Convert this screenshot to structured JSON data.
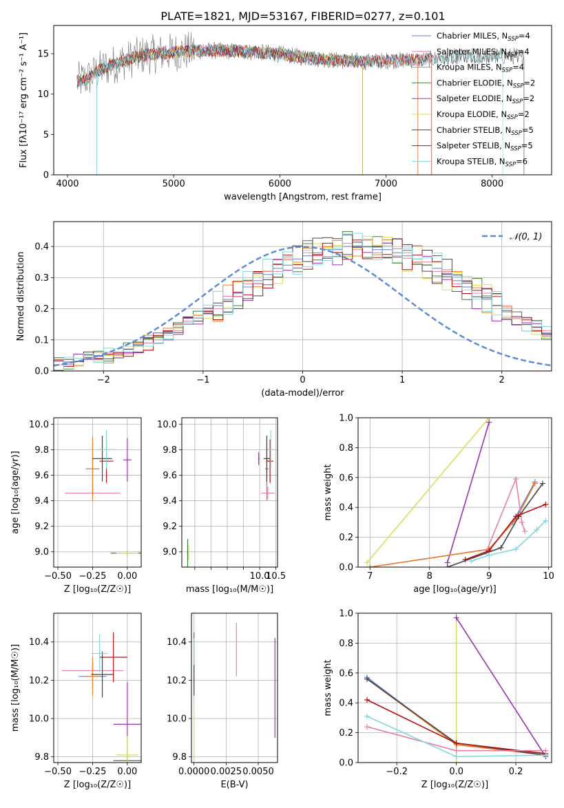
{
  "title": "PLATE=1821, MJD=53167, FIBERID=0277, z=0.101",
  "colors": {
    "chabrier_miles": "#5b7fd6",
    "salpeter_miles": "#e67fa8",
    "kroupa_miles": "#f07f28",
    "chabrier_elodie": "#3c7a3c",
    "salpeter_elodie": "#9b30b0",
    "kroupa_elodie": "#d4e05a",
    "chabrier_stelib": "#444444",
    "salpeter_stelib": "#b01010",
    "kroupa_stelib": "#7fd8e0",
    "normal_curve": "#5b8bd6"
  },
  "chart_data": [
    {
      "id": "spectrum",
      "type": "line",
      "xlabel": "wavelength [Angstrom, rest frame]",
      "ylabel": "Flux [fλ10⁻¹⁷ erg cm⁻² s⁻¹ A⁻¹]",
      "xlim": [
        3870,
        8560
      ],
      "ylim": [
        0,
        18.5
      ],
      "xticks": [
        4000,
        5000,
        6000,
        7000,
        8000
      ],
      "yticks": [
        0,
        5,
        10,
        15
      ],
      "grid": false,
      "legend_position": "right",
      "continuum": {
        "x": [
          4090,
          4200,
          4300,
          4500,
          4700,
          5000,
          5300,
          5600,
          5900,
          6200,
          6500,
          6800,
          7100,
          7400,
          7700,
          8000,
          8300
        ],
        "y": [
          11.5,
          12.0,
          13.0,
          14.0,
          14.8,
          15.2,
          15.4,
          15.3,
          15.1,
          14.6,
          14.2,
          14.0,
          14.2,
          14.3,
          14.6,
          14.7,
          14.7
        ]
      },
      "series": [
        {
          "name": "Chabrier MILES, N_SSP=4",
          "name_main": "Chabrier MILES, N",
          "name_sub": "SSP",
          "name_tail": "=4",
          "x_end": 7300,
          "color_key": "chabrier_miles"
        },
        {
          "name": "Salpeter MILES, N_SSP=4",
          "name_main": "Salpeter MILES, N",
          "name_sub": "SSP",
          "name_tail": "=4",
          "x_end": 7300,
          "color_key": "salpeter_miles"
        },
        {
          "name": "Kroupa MILES, N_SSP=4",
          "name_main": "Kroupa MILES, N",
          "name_sub": "SSP",
          "name_tail": "=4",
          "x_end": 7300,
          "color_key": "kroupa_miles"
        },
        {
          "name": "Chabrier ELODIE, N_SSP=2",
          "name_main": "Chabrier ELODIE, N",
          "name_sub": "SSP",
          "name_tail": "=2",
          "x_end": 6780,
          "color_key": "chabrier_elodie"
        },
        {
          "name": "Salpeter ELODIE, N_SSP=2",
          "name_main": "Salpeter ELODIE, N",
          "name_sub": "SSP",
          "name_tail": "=2",
          "x_end": 6780,
          "color_key": "salpeter_elodie"
        },
        {
          "name": "Kroupa ELODIE, N_SSP=2",
          "name_main": "Kroupa ELODIE, N",
          "name_sub": "SSP",
          "name_tail": "=2",
          "x_end": 6780,
          "color_key": "kroupa_elodie"
        },
        {
          "name": "Chabrier STELIB, N_SSP=5",
          "name_main": "Chabrier STELIB, N",
          "name_sub": "SSP",
          "name_tail": "=5",
          "x_end": 8300,
          "color_key": "chabrier_stelib"
        },
        {
          "name": "Salpeter STELIB, N_SSP=5",
          "name_main": "Salpeter STELIB, N",
          "name_sub": "SSP",
          "name_tail": "=5",
          "x_end": 7430,
          "color_key": "salpeter_stelib"
        },
        {
          "name": "Kroupa STELIB, N_SSP=6",
          "name_main": "Kroupa STELIB, N",
          "name_sub": "SSP",
          "name_tail": "=6",
          "x_end": 8100,
          "color_key": "kroupa_stelib"
        }
      ]
    },
    {
      "id": "residuals",
      "type": "histogram",
      "xlabel": "(data-model)/error",
      "ylabel": "Normed distribution",
      "xlim": [
        -2.5,
        2.5
      ],
      "ylim": [
        0,
        0.48
      ],
      "xticks": [
        -2,
        -1,
        0,
        1,
        2
      ],
      "yticks": [
        0.0,
        0.1,
        0.2,
        0.3,
        0.4
      ],
      "grid": true,
      "legend_position": "top-right",
      "legend": "𝒩(0, 1)",
      "bin_width": 0.1,
      "bins_start": -2.5,
      "series": [
        {
          "color_key": "chabrier_miles",
          "values": [
            0.02,
            0.02,
            0.03,
            0.04,
            0.05,
            0.05,
            0.06,
            0.07,
            0.08,
            0.09,
            0.11,
            0.12,
            0.14,
            0.15,
            0.17,
            0.19,
            0.21,
            0.23,
            0.25,
            0.27,
            0.29,
            0.31,
            0.33,
            0.34,
            0.36,
            0.37,
            0.38,
            0.39,
            0.39,
            0.4,
            0.4,
            0.4,
            0.39,
            0.39,
            0.38,
            0.37,
            0.36,
            0.34,
            0.33,
            0.31,
            0.29,
            0.27,
            0.25,
            0.23,
            0.21,
            0.19,
            0.17,
            0.15,
            0.14,
            0.12
          ]
        },
        {
          "color_key": "salpeter_miles",
          "values": [
            0.02,
            0.03,
            0.03,
            0.04,
            0.04,
            0.06,
            0.06,
            0.07,
            0.09,
            0.09,
            0.1,
            0.13,
            0.13,
            0.16,
            0.16,
            0.2,
            0.2,
            0.24,
            0.24,
            0.28,
            0.28,
            0.32,
            0.32,
            0.36,
            0.35,
            0.38,
            0.37,
            0.4,
            0.38,
            0.41,
            0.39,
            0.42,
            0.38,
            0.41,
            0.37,
            0.38,
            0.35,
            0.35,
            0.32,
            0.32,
            0.28,
            0.29,
            0.25,
            0.25,
            0.21,
            0.21,
            0.17,
            0.17,
            0.14,
            0.13
          ]
        }
      ],
      "normal_curve": {
        "mean": 0,
        "sigma": 1
      }
    },
    {
      "id": "age_vs_Z",
      "type": "errorbar",
      "xlabel": "Z [log₁₀(Z/Z☉)]",
      "ylabel": "age [log₁₀(age/yr)]",
      "xlim": [
        -0.53,
        0.1
      ],
      "ylim": [
        8.88,
        10.05
      ],
      "xticks": [
        -0.5,
        -0.25,
        0.0
      ],
      "yticks": [
        9.0,
        9.2,
        9.4,
        9.6,
        9.8,
        10.0
      ],
      "grid": true,
      "points": [
        {
          "color_key": "chabrier_miles",
          "x": -0.25,
          "xerr": 0.05,
          "y": 9.65,
          "yerr": 0.2
        },
        {
          "color_key": "salpeter_miles",
          "x": -0.25,
          "xerr": 0.2,
          "y": 9.46,
          "yerr": 0.05
        },
        {
          "color_key": "kroupa_miles",
          "x": -0.25,
          "xerr": 0.05,
          "y": 9.65,
          "yerr": 0.25
        },
        {
          "color_key": "chabrier_elodie",
          "x": 0.0,
          "xerr": 0.12,
          "y": 8.99,
          "yerr": 0.02
        },
        {
          "color_key": "salpeter_elodie",
          "x": 0.0,
          "xerr": 0.03,
          "y": 9.72,
          "yerr": 0.17
        },
        {
          "color_key": "kroupa_elodie",
          "x": 0.0,
          "xerr": 0.08,
          "y": 8.99,
          "yerr": 0.02
        },
        {
          "color_key": "chabrier_stelib",
          "x": -0.18,
          "xerr": 0.07,
          "y": 9.73,
          "yerr": 0.18
        },
        {
          "color_key": "salpeter_stelib",
          "x": -0.15,
          "xerr": 0.05,
          "y": 9.71,
          "yerr": 0.17
        },
        {
          "color_key": "kroupa_stelib",
          "x": -0.15,
          "xerr": 0.07,
          "y": 9.8,
          "yerr": 0.15
        }
      ]
    },
    {
      "id": "age_vs_mass",
      "type": "errorbar",
      "xlabel": "mass [log₁₀(M/M☉)]",
      "ylabel": "",
      "xlim": [
        7.6,
        10.55
      ],
      "ylim": [
        8.88,
        10.05
      ],
      "xticks": [
        8,
        8.5,
        9,
        9.5,
        10,
        10.5
      ],
      "xticklabels": [
        "",
        "",
        "",
        "",
        "10.0",
        "10.5"
      ],
      "yticks": [
        9.0,
        9.2,
        9.4,
        9.6,
        9.8,
        10.0
      ],
      "grid": true,
      "points": [
        {
          "color_key": "chabrier_miles",
          "x": 10.22,
          "xerr": 0.05,
          "y": 9.65,
          "yerr": 0.2
        },
        {
          "color_key": "salpeter_miles",
          "x": 10.25,
          "xerr": 0.2,
          "y": 9.46,
          "yerr": 0.05
        },
        {
          "color_key": "kroupa_miles",
          "x": 10.22,
          "xerr": 0.05,
          "y": 9.65,
          "yerr": 0.25
        },
        {
          "color_key": "chabrier_elodie",
          "x": 7.78,
          "xerr": 0.02,
          "y": 8.99,
          "yerr": 0.11
        },
        {
          "color_key": "salpeter_elodie",
          "x": 9.97,
          "xerr": 0.02,
          "y": 9.73,
          "yerr": 0.05
        },
        {
          "color_key": "kroupa_elodie",
          "x": 7.81,
          "xerr": 0.02,
          "y": 8.99,
          "yerr": 0.06
        },
        {
          "color_key": "chabrier_stelib",
          "x": 10.22,
          "xerr": 0.1,
          "y": 9.73,
          "yerr": 0.18
        },
        {
          "color_key": "salpeter_stelib",
          "x": 10.32,
          "xerr": 0.1,
          "y": 9.71,
          "yerr": 0.17
        },
        {
          "color_key": "kroupa_stelib",
          "x": 10.34,
          "xerr": 0.1,
          "y": 9.8,
          "yerr": 0.15
        }
      ]
    },
    {
      "id": "weight_vs_age",
      "type": "line",
      "xlabel": "age [log₁₀(age/yr)]",
      "ylabel": "mass weight",
      "xlim": [
        6.8,
        10.05
      ],
      "ylim": [
        0,
        1.0
      ],
      "xticks": [
        7,
        8,
        9,
        10
      ],
      "yticks": [
        0.0,
        0.2,
        0.4,
        0.6,
        0.8,
        1.0
      ],
      "grid": true,
      "series": [
        {
          "color_key": "kroupa_elodie",
          "x": [
            6.95,
            9.0
          ],
          "y": [
            0.03,
            1.0
          ]
        },
        {
          "color_key": "salpeter_elodie",
          "x": [
            8.3,
            9.0
          ],
          "y": [
            0.03,
            0.97
          ]
        },
        {
          "color_key": "chabrier_miles",
          "x": [
            7.0,
            9.0,
            9.4,
            9.77
          ],
          "y": [
            0.0,
            0.12,
            0.3,
            0.57
          ]
        },
        {
          "color_key": "kroupa_miles",
          "x": [
            7.0,
            9.0,
            9.45,
            9.77
          ],
          "y": [
            0.0,
            0.12,
            0.32,
            0.56
          ]
        },
        {
          "color_key": "salpeter_miles",
          "x": [
            8.95,
            9.45,
            9.55,
            9.6
          ],
          "y": [
            0.1,
            0.59,
            0.3,
            0.24
          ]
        },
        {
          "color_key": "chabrier_stelib",
          "x": [
            8.3,
            9.2,
            9.5,
            9.9
          ],
          "y": [
            0.0,
            0.13,
            0.34,
            0.56
          ]
        },
        {
          "color_key": "salpeter_stelib",
          "x": [
            8.6,
            9.0,
            9.45,
            9.95
          ],
          "y": [
            0.05,
            0.11,
            0.34,
            0.42
          ]
        },
        {
          "color_key": "kroupa_stelib",
          "x": [
            8.7,
            9.0,
            9.45,
            9.8,
            9.95
          ],
          "y": [
            0.04,
            0.08,
            0.12,
            0.25,
            0.31
          ]
        }
      ]
    },
    {
      "id": "mass_vs_Z",
      "type": "errorbar",
      "xlabel": "Z [log₁₀(Z/Z☉)]",
      "ylabel": "mass [log₁₀(M/M☉)]",
      "xlim": [
        -0.53,
        0.1
      ],
      "ylim": [
        9.77,
        10.55
      ],
      "xticks": [
        -0.5,
        -0.25,
        0.0
      ],
      "yticks": [
        9.8,
        10.0,
        10.2,
        10.4
      ],
      "grid": true,
      "points": [
        {
          "color_key": "chabrier_miles",
          "x": -0.25,
          "xerr": 0.1,
          "y": 10.22,
          "yerr": 0.06
        },
        {
          "color_key": "salpeter_miles",
          "x": -0.25,
          "xerr": 0.22,
          "y": 10.25,
          "yerr": 0.04
        },
        {
          "color_key": "kroupa_miles",
          "x": -0.25,
          "xerr": 0.05,
          "y": 10.22,
          "yerr": 0.1
        },
        {
          "color_key": "chabrier_elodie",
          "x": 0.0,
          "xerr": 0.1,
          "y": 9.78,
          "yerr": 0.01
        },
        {
          "color_key": "salpeter_elodie",
          "x": 0.0,
          "xerr": 0.1,
          "y": 9.97,
          "yerr": 0.22
        },
        {
          "color_key": "kroupa_elodie",
          "x": 0.0,
          "xerr": 0.08,
          "y": 9.81,
          "yerr": 0.1
        },
        {
          "color_key": "chabrier_stelib",
          "x": -0.18,
          "xerr": 0.08,
          "y": 10.23,
          "yerr": 0.12
        },
        {
          "color_key": "salpeter_stelib",
          "x": -0.1,
          "xerr": 0.1,
          "y": 10.32,
          "yerr": 0.13
        },
        {
          "color_key": "kroupa_stelib",
          "x": -0.2,
          "xerr": 0.06,
          "y": 10.34,
          "yerr": 0.1
        }
      ]
    },
    {
      "id": "mass_vs_ebv",
      "type": "errorbar",
      "xlabel": "E(B-V)",
      "ylabel": "",
      "xlim": [
        -0.0002,
        0.0065
      ],
      "ylim": [
        9.77,
        10.55
      ],
      "xticks": [
        0.0,
        0.0025,
        0.005
      ],
      "xticklabels": [
        "0.0000",
        "0.0025",
        "0.0050"
      ],
      "yticks": [
        9.8,
        10.0,
        10.2,
        10.4
      ],
      "grid": true,
      "points": [
        {
          "color_key": "salpeter_miles",
          "x": 0.0033,
          "y": 10.36,
          "yerr": 0.14
        },
        {
          "color_key": "salpeter_elodie",
          "x": 0.0063,
          "y": 10.16,
          "yerr": 0.26
        },
        {
          "color_key": "chabrier_elodie",
          "x": 0.0,
          "y": 10.35,
          "yerr": 0.1
        },
        {
          "color_key": "kroupa_elodie",
          "x": 0.0,
          "y": 9.9,
          "yerr": 0.16
        },
        {
          "color_key": "kroupa_stelib",
          "x": 0.0,
          "y": 10.3,
          "yerr": 0.12
        },
        {
          "color_key": "chabrier_stelib",
          "x": 0.0,
          "y": 10.2,
          "yerr": 0.08
        }
      ]
    },
    {
      "id": "weight_vs_Z",
      "type": "line",
      "xlabel": "Z [log₁₀(Z/Z☉)]",
      "ylabel": "mass weight",
      "xlim": [
        -0.33,
        0.32
      ],
      "ylim": [
        0,
        1.0
      ],
      "xticks": [
        -0.2,
        0.0,
        0.2
      ],
      "yticks": [
        0.0,
        0.2,
        0.4,
        0.6,
        0.8,
        1.0
      ],
      "grid": true,
      "series": [
        {
          "color_key": "kroupa_elodie",
          "x": [
            0.0,
            0.0
          ],
          "y": [
            0.0,
            1.0
          ]
        },
        {
          "color_key": "salpeter_elodie",
          "x": [
            0.0,
            0.3
          ],
          "y": [
            0.97,
            0.04
          ]
        },
        {
          "color_key": "chabrier_miles",
          "x": [
            -0.3,
            0.0,
            0.3
          ],
          "y": [
            0.57,
            0.12,
            0.05
          ]
        },
        {
          "color_key": "kroupa_miles",
          "x": [
            -0.3,
            0.0,
            0.3
          ],
          "y": [
            0.56,
            0.12,
            0.05
          ]
        },
        {
          "color_key": "chabrier_stelib",
          "x": [
            -0.3,
            0.0,
            0.3
          ],
          "y": [
            0.56,
            0.13,
            0.05
          ]
        },
        {
          "color_key": "salpeter_stelib",
          "x": [
            -0.3,
            0.0,
            0.3
          ],
          "y": [
            0.42,
            0.13,
            0.06
          ]
        },
        {
          "color_key": "salpeter_miles",
          "x": [
            -0.3,
            0.0,
            0.3
          ],
          "y": [
            0.24,
            0.08,
            0.08
          ]
        },
        {
          "color_key": "kroupa_stelib",
          "x": [
            -0.3,
            0.0,
            0.3
          ],
          "y": [
            0.31,
            0.04,
            0.05
          ]
        }
      ]
    }
  ]
}
